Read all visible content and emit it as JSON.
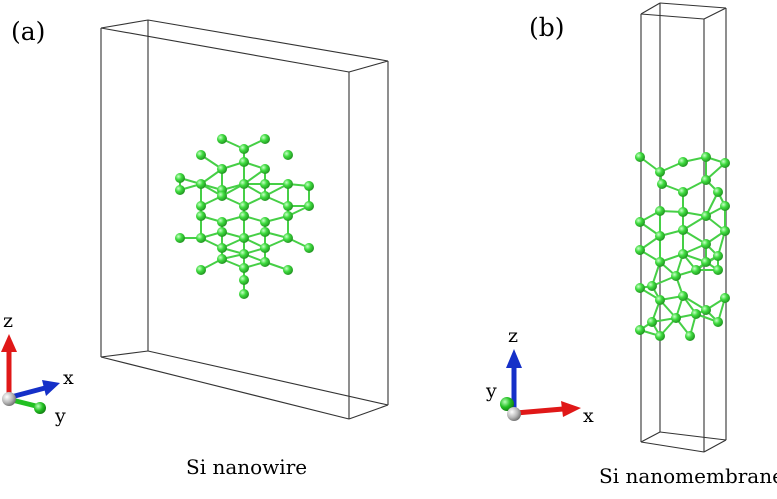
{
  "panels": [
    {
      "label": "(a)",
      "caption": "Si nanowire",
      "axes": [
        "z",
        "x",
        "y"
      ]
    },
    {
      "label": "(b)",
      "caption": "Si nanomembrane",
      "axes": [
        "z",
        "y",
        "x"
      ]
    }
  ],
  "colors": {
    "atom": "#3fdc3f",
    "bond": "#46cf46",
    "cell": "#333333",
    "axis_z": "#e01818",
    "axis_x_a": "#1530c8",
    "axis_y_a": "#22c022",
    "axis_z_b": "#1530c8",
    "axis_x_b": "#e01818",
    "axis_y_b": "#22c022",
    "origin": "#b0b0b0"
  }
}
